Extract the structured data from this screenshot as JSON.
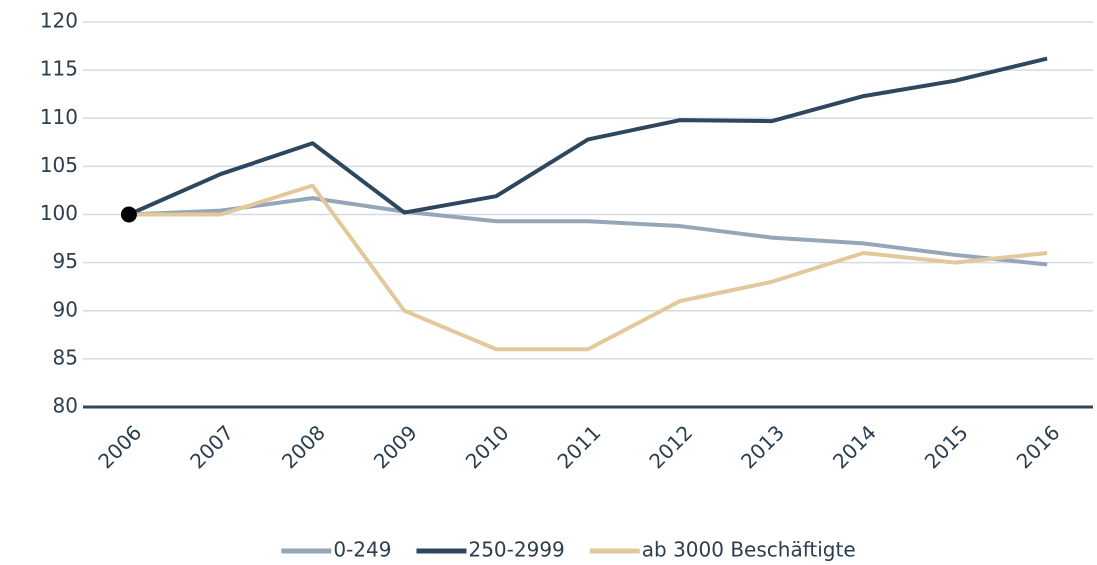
{
  "chart_data": {
    "type": "line",
    "categories": [
      "2006",
      "2007",
      "2008",
      "2009",
      "2010",
      "2011",
      "2012",
      "2013",
      "2014",
      "2015",
      "2016"
    ],
    "series": [
      {
        "name": "0-249",
        "color": "#94a6b8",
        "values": [
          100,
          100.4,
          101.7,
          100.3,
          99.3,
          99.3,
          98.8,
          97.6,
          97.0,
          95.8,
          94.8
        ]
      },
      {
        "name": "250-2999",
        "color": "#2f475e",
        "values": [
          100,
          104.2,
          107.4,
          100.2,
          101.9,
          107.8,
          109.8,
          109.7,
          112.3,
          113.9,
          116.2
        ]
      },
      {
        "name": "ab 3000 Beschäftigte",
        "color": "#e3c89b",
        "values": [
          100,
          100,
          103,
          90,
          86,
          86,
          91,
          93,
          96,
          95,
          96
        ]
      }
    ],
    "ylim": [
      80,
      120
    ],
    "yticks": [
      80,
      85,
      90,
      95,
      100,
      105,
      110,
      115,
      120
    ],
    "grid": true,
    "start_marker": true,
    "legend": "bottom"
  }
}
